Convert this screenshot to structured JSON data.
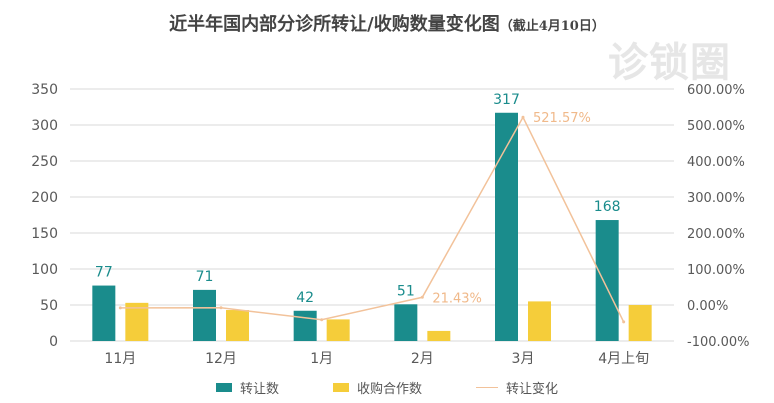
{
  "chart_data": {
    "type": "bar",
    "title": "近半年国内部分诊所转让/收购数量变化图",
    "subtitle": "（截止4月10日）",
    "categories": [
      "11月",
      "12月",
      "1月",
      "2月",
      "3月",
      "4月上旬"
    ],
    "series": [
      {
        "name": "转让数",
        "type": "bar",
        "axis": "left",
        "color": "#1a8c8c",
        "values": [
          77,
          71,
          42,
          51,
          317,
          168
        ]
      },
      {
        "name": "收购合作数",
        "type": "bar",
        "axis": "left",
        "color": "#f5cd3a",
        "values": [
          53,
          43,
          30,
          14,
          55,
          50
        ]
      },
      {
        "name": "转让变化",
        "type": "line",
        "axis": "right",
        "color": "#f2c29a",
        "values": [
          -8.0,
          -7.79,
          -40.85,
          21.43,
          521.57,
          -47.0
        ]
      }
    ],
    "bar_labels": [
      "77",
      "71",
      "42",
      "51",
      "317",
      "168"
    ],
    "line_labels": [
      {
        "index": 3,
        "text": "21.43%"
      },
      {
        "index": 4,
        "text": "521.57%"
      }
    ],
    "ylim": [
      0,
      350
    ],
    "yticks": [
      "0",
      "50",
      "100",
      "150",
      "200",
      "250",
      "300",
      "350"
    ],
    "y2lim": [
      -100,
      600
    ],
    "y2ticks": [
      "-100.00%",
      "0.00%",
      "100.00%",
      "200.00%",
      "300.00%",
      "400.00%",
      "500.00%",
      "600.00%"
    ],
    "grid": true,
    "legend_position": "bottom"
  },
  "watermark": "诊锁圈",
  "colors": {
    "teal": "#1a8c8c",
    "yellow": "#f5cd3a",
    "line": "#f2c29a",
    "grid": "#d9d9d9",
    "axis_text": "#595959"
  }
}
